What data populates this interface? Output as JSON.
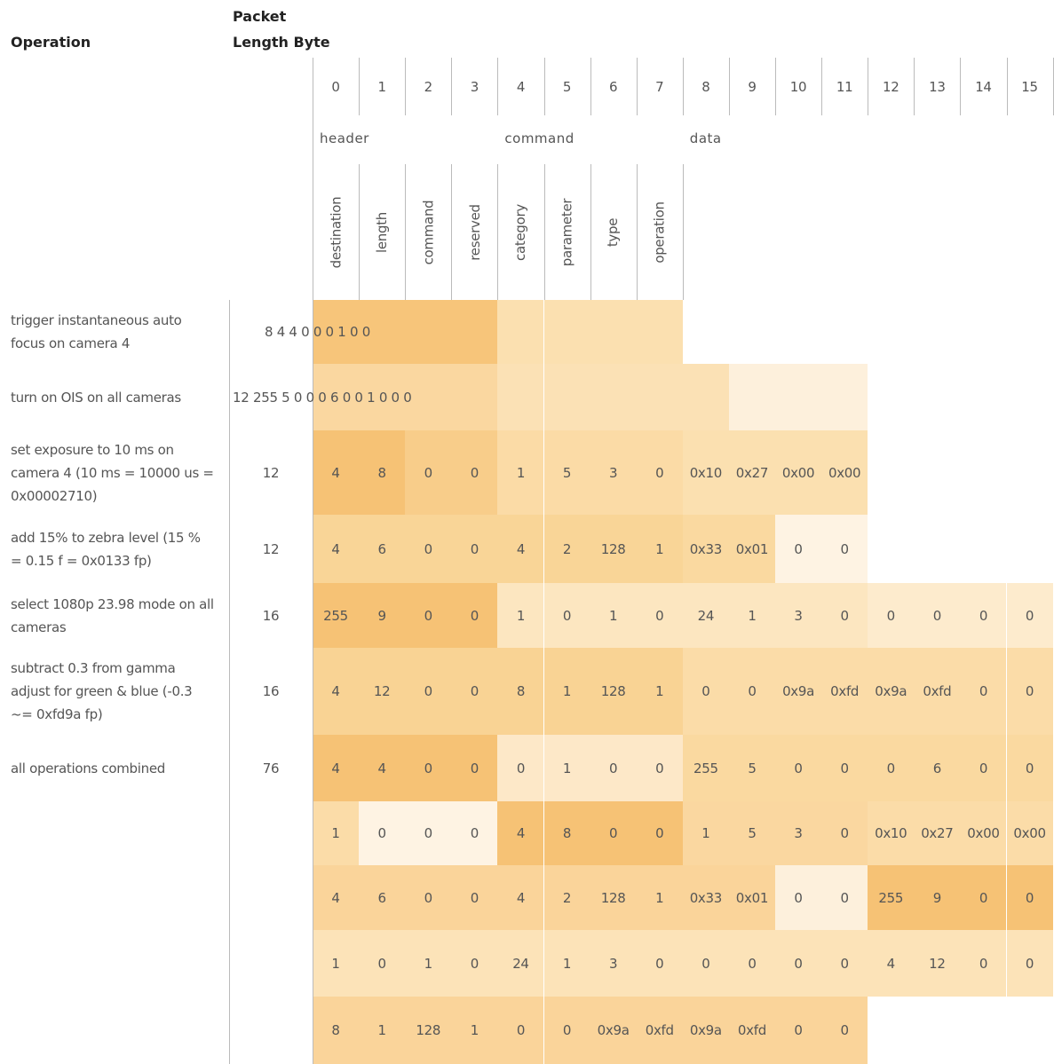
{
  "header": {
    "operation": "Operation",
    "length": "Packet Length Byte"
  },
  "byte_indices": [
    0,
    1,
    2,
    3,
    4,
    5,
    6,
    7,
    8,
    9,
    10,
    11,
    12,
    13,
    14,
    15
  ],
  "groups": [
    {
      "label": "header",
      "byte": 0
    },
    {
      "label": "command",
      "byte": 4
    },
    {
      "label": "data",
      "byte": 8
    }
  ],
  "fields": [
    "destination",
    "length",
    "command",
    "reserved",
    "category",
    "parameter",
    "type",
    "operation"
  ],
  "rows": [
    {
      "operation": "trigger instantaneous auto focus on camera 4",
      "length": "8 4 4 0 0 0 1 0 0",
      "colors": [
        "#f7c57a",
        "#f7c57a",
        "#f7c57a",
        "#f7c57a",
        "#fbe0b0",
        "#fbe0b0",
        "#fbe0b0",
        "#fbe0b0"
      ]
    },
    {
      "operation": "turn on OIS on all cameras",
      "length": "12 255 5 0 0 0 6 0 0 1 0 0 0",
      "colors": [
        "#fad7a0",
        "#fad7a0",
        "#fad7a0",
        "#fad7a0",
        "#fbe1b5",
        "#fbe1b5",
        "#fbe1b5",
        "#fbe1b5",
        "#fbe1b5",
        "#fdf0dc",
        "#fdf0dc",
        "#fdf0dc"
      ]
    },
    {
      "operation": "set exposure to 10 ms on camera 4 (10 ms = 10000 us = 0x00002710)",
      "length": 12,
      "bytes": [
        4,
        8,
        0,
        0,
        1,
        5,
        3,
        0,
        "0x10",
        "0x27",
        "0x00",
        "0x00"
      ],
      "colors": [
        "#f6c275",
        "#f6c275",
        "#f8cd8a",
        "#f8cd8a",
        "#fbdba6",
        "#fbdba6",
        "#fbdba6",
        "#fbdba6",
        "#fbe0b0",
        "#fbe0b0",
        "#fbe0b0",
        "#fbe0b0"
      ]
    },
    {
      "operation": "add 15% to zebra level (15 % = 0.15 f = 0x0133 fp)",
      "length": 12,
      "bytes": [
        4,
        6,
        0,
        0,
        4,
        2,
        128,
        1,
        "0x33",
        "0x01",
        0,
        0
      ],
      "colors": [
        "#f9d597",
        "#f9d597",
        "#f9d597",
        "#f9d597",
        "#f9d597",
        "#f9d597",
        "#f9d597",
        "#f9d597",
        "#fad9a0",
        "#fad9a0",
        "#fef3e3",
        "#fef3e3"
      ]
    },
    {
      "operation": "select 1080p 23.98 mode on all cameras",
      "length": 16,
      "bytes": [
        255,
        9,
        0,
        0,
        1,
        0,
        1,
        0,
        24,
        1,
        3,
        0,
        0,
        0,
        0,
        0
      ],
      "colors": [
        "#f6c275",
        "#f6c275",
        "#f6c275",
        "#f6c275",
        "#fce6c0",
        "#fce6c0",
        "#fce6c0",
        "#fce6c0",
        "#fce6c0",
        "#fce6c0",
        "#fce6c0",
        "#fce6c0",
        "#fdebcd",
        "#fdebcd",
        "#fdebcd",
        "#fdebcd"
      ]
    },
    {
      "operation": "subtract 0.3 from gamma adjust for green & blue (-0.3 ~= 0xfd9a fp)",
      "length": 16,
      "bytes": [
        4,
        12,
        0,
        0,
        8,
        1,
        128,
        1,
        0,
        0,
        "0x9a",
        "0xfd",
        "0x9a",
        "0xfd",
        0,
        0
      ],
      "colors": [
        "#f9d394",
        "#f9d394",
        "#f9d394",
        "#f9d394",
        "#f9d394",
        "#f9d394",
        "#f9d394",
        "#f9d394",
        "#fbdca8",
        "#fbdca8",
        "#fbdca8",
        "#fbdca8",
        "#fbdca8",
        "#fbdca8",
        "#fbdca8",
        "#fbdca8"
      ]
    },
    {
      "operation": "all operations combined",
      "length": 76,
      "bytes": [
        4,
        4,
        0,
        0,
        0,
        1,
        0,
        0,
        255,
        5,
        0,
        0,
        0,
        6,
        0,
        0
      ],
      "colors": [
        "#f6c275",
        "#f6c275",
        "#f6c275",
        "#f6c275",
        "#fde8c8",
        "#fde8c8",
        "#fde8c8",
        "#fde8c8",
        "#fad9a0",
        "#fad9a0",
        "#fad9a0",
        "#fad9a0",
        "#fad9a0",
        "#fad9a0",
        "#fad9a0",
        "#fad9a0"
      ]
    },
    {
      "bytes": [
        1,
        0,
        0,
        0,
        4,
        8,
        0,
        0,
        1,
        5,
        3,
        0,
        "0x10",
        "0x27",
        "0x00",
        "0x00"
      ],
      "colors": [
        "#fbdca8",
        "#fef3e3",
        "#fef3e3",
        "#fef3e3",
        "#f6c275",
        "#f6c275",
        "#f6c275",
        "#f6c275",
        "#fad7a0",
        "#fad7a0",
        "#fad7a0",
        "#fad7a0",
        "#fbdca8",
        "#fbdca8",
        "#fbdca8",
        "#fbdca8"
      ]
    },
    {
      "bytes": [
        4,
        6,
        0,
        0,
        4,
        2,
        128,
        1,
        "0x33",
        "0x01",
        0,
        0,
        255,
        9,
        0,
        0
      ],
      "colors": [
        "#fad49a",
        "#fad49a",
        "#fad49a",
        "#fad49a",
        "#fad49a",
        "#fad49a",
        "#fad49a",
        "#fad49a",
        "#fad49a",
        "#fad49a",
        "#fdf0dc",
        "#fdf0dc",
        "#f6c275",
        "#f6c275",
        "#f6c275",
        "#f6c275"
      ]
    },
    {
      "bytes": [
        1,
        0,
        1,
        0,
        24,
        1,
        3,
        0,
        0,
        0,
        0,
        0,
        4,
        12,
        0,
        0
      ],
      "colors": [
        "#fce3b8",
        "#fce3b8",
        "#fce3b8",
        "#fce3b8",
        "#fce3b8",
        "#fce3b8",
        "#fce3b8",
        "#fce3b8",
        "#fce3b8",
        "#fce3b8",
        "#fce3b8",
        "#fce3b8",
        "#fce3b8",
        "#fce3b8",
        "#fce3b8",
        "#fce3b8"
      ]
    },
    {
      "bytes": [
        8,
        1,
        128,
        1,
        0,
        0,
        "0x9a",
        "0xfd",
        "0x9a",
        "0xfd",
        0,
        0
      ],
      "colors": [
        "#fad49a",
        "#fad49a",
        "#fad49a",
        "#fad49a",
        "#fad49a",
        "#fad49a",
        "#fad49a",
        "#fad49a",
        "#fad49a",
        "#fad49a",
        "#fad49a",
        "#fad49a"
      ]
    }
  ]
}
